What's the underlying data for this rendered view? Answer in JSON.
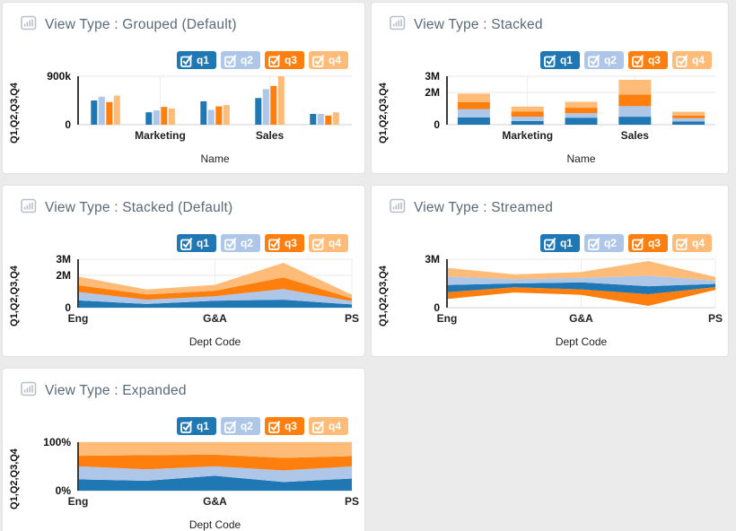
{
  "colors": {
    "q1": "#1f77b4",
    "q2": "#aec7e8",
    "q3": "#ff7f0e",
    "q4": "#ffbb78",
    "page_bg": "#ebebeb",
    "panel_bg": "#ffffff",
    "title_text": "#5a6a78",
    "icon_gray": "#b9c0c7"
  },
  "legend": {
    "position": "top-right",
    "items": [
      {
        "label": "q1",
        "series": "q1",
        "checked": true
      },
      {
        "label": "q2",
        "series": "q2",
        "checked": true
      },
      {
        "label": "q3",
        "series": "q3",
        "checked": true
      },
      {
        "label": "q4",
        "series": "q4",
        "checked": true
      }
    ]
  },
  "panels": [
    {
      "title": "View Type : Grouped (Default)",
      "icon": "bar-chart-icon"
    },
    {
      "title": "View Type : Stacked",
      "icon": "bar-chart-icon"
    },
    {
      "title": "View Type : Stacked (Default)",
      "icon": "bar-chart-icon"
    },
    {
      "title": "View Type : Streamed",
      "icon": "bar-chart-icon"
    },
    {
      "title": "View Type : Expanded",
      "icon": "bar-chart-icon"
    }
  ],
  "chart_data": [
    {
      "type": "bar",
      "variant": "grouped",
      "title": "View Type : Grouped (Default)",
      "categories": [
        "",
        "Marketing",
        "",
        "Sales",
        ""
      ],
      "series": [
        {
          "name": "q1",
          "values": [
            450000,
            230000,
            435000,
            495000,
            200000
          ]
        },
        {
          "name": "q2",
          "values": [
            520000,
            265000,
            275000,
            660000,
            200000
          ]
        },
        {
          "name": "q3",
          "values": [
            420000,
            330000,
            340000,
            720000,
            170000
          ]
        },
        {
          "name": "q4",
          "values": [
            540000,
            300000,
            365000,
            900000,
            230000
          ]
        }
      ],
      "xlabel": "Name",
      "ylabel": "Q1,Q2,Q3,Q4",
      "ylim": [
        0,
        900000
      ],
      "yticks": [
        {
          "v": 0,
          "label": "0"
        },
        {
          "v": 900000,
          "label": "900k"
        }
      ],
      "grid": true,
      "legend_position": "top-right"
    },
    {
      "type": "bar",
      "variant": "stacked",
      "title": "View Type : Stacked",
      "categories": [
        "",
        "Marketing",
        "",
        "Sales",
        ""
      ],
      "series": [
        {
          "name": "q1",
          "values": [
            450000,
            230000,
            435000,
            495000,
            200000
          ]
        },
        {
          "name": "q2",
          "values": [
            520000,
            265000,
            275000,
            660000,
            200000
          ]
        },
        {
          "name": "q3",
          "values": [
            420000,
            330000,
            340000,
            720000,
            170000
          ]
        },
        {
          "name": "q4",
          "values": [
            540000,
            300000,
            365000,
            900000,
            230000
          ]
        }
      ],
      "xlabel": "Name",
      "ylabel": "Q1,Q2,Q3,Q4",
      "ylim": [
        0,
        3000000
      ],
      "yticks": [
        {
          "v": 0,
          "label": "0"
        },
        {
          "v": 2000000,
          "label": "2M"
        },
        {
          "v": 3000000,
          "label": "3M"
        }
      ],
      "grid": true,
      "legend_position": "top-right"
    },
    {
      "type": "area",
      "variant": "stacked",
      "title": "View Type : Stacked (Default)",
      "categories": [
        "Eng",
        "",
        "G&A",
        "",
        "PS"
      ],
      "series": [
        {
          "name": "q1",
          "values": [
            450000,
            230000,
            435000,
            495000,
            200000
          ]
        },
        {
          "name": "q2",
          "values": [
            520000,
            265000,
            275000,
            660000,
            200000
          ]
        },
        {
          "name": "q3",
          "values": [
            420000,
            330000,
            340000,
            720000,
            170000
          ]
        },
        {
          "name": "q4",
          "values": [
            540000,
            300000,
            365000,
            900000,
            230000
          ]
        }
      ],
      "xlabel": "Dept Code",
      "ylabel": "Q1,Q2,Q3,Q4",
      "ylim": [
        0,
        3000000
      ],
      "yticks": [
        {
          "v": 0,
          "label": "0"
        },
        {
          "v": 2000000,
          "label": "2M"
        },
        {
          "v": 3000000,
          "label": "3M"
        }
      ],
      "grid": true,
      "legend_position": "top-right"
    },
    {
      "type": "area",
      "variant": "streamed",
      "baseline": "centered",
      "stack_order": [
        "q3",
        "q1",
        "q2",
        "q4"
      ],
      "title": "View Type : Streamed",
      "categories": [
        "Eng",
        "",
        "G&A",
        "",
        "PS"
      ],
      "series": [
        {
          "name": "q1",
          "values": [
            450000,
            230000,
            435000,
            495000,
            200000
          ]
        },
        {
          "name": "q2",
          "values": [
            520000,
            265000,
            275000,
            660000,
            200000
          ]
        },
        {
          "name": "q3",
          "values": [
            420000,
            330000,
            340000,
            720000,
            170000
          ]
        },
        {
          "name": "q4",
          "values": [
            540000,
            300000,
            365000,
            900000,
            230000
          ]
        }
      ],
      "xlabel": "Dept Code",
      "ylabel": "Q1,Q2,Q3,Q4",
      "ylim": [
        0,
        3000000
      ],
      "yticks": [
        {
          "v": 0,
          "label": "0"
        },
        {
          "v": 3000000,
          "label": "3M"
        }
      ],
      "grid": true,
      "legend_position": "top-right"
    },
    {
      "type": "area",
      "variant": "expanded",
      "title": "View Type : Expanded",
      "categories": [
        "Eng",
        "",
        "G&A",
        "",
        "PS"
      ],
      "series": [
        {
          "name": "q1",
          "values": [
            450000,
            230000,
            435000,
            495000,
            200000
          ]
        },
        {
          "name": "q2",
          "values": [
            520000,
            265000,
            275000,
            660000,
            200000
          ]
        },
        {
          "name": "q3",
          "values": [
            420000,
            330000,
            340000,
            720000,
            170000
          ]
        },
        {
          "name": "q4",
          "values": [
            540000,
            300000,
            365000,
            900000,
            230000
          ]
        }
      ],
      "xlabel": "Dept Code",
      "ylabel": "Q1,Q2,Q3,Q4",
      "ylim": [
        0,
        1
      ],
      "yticks": [
        {
          "v": 0,
          "label": "0%"
        },
        {
          "v": 1,
          "label": "100%"
        }
      ],
      "grid": true,
      "legend_position": "top-right"
    }
  ]
}
